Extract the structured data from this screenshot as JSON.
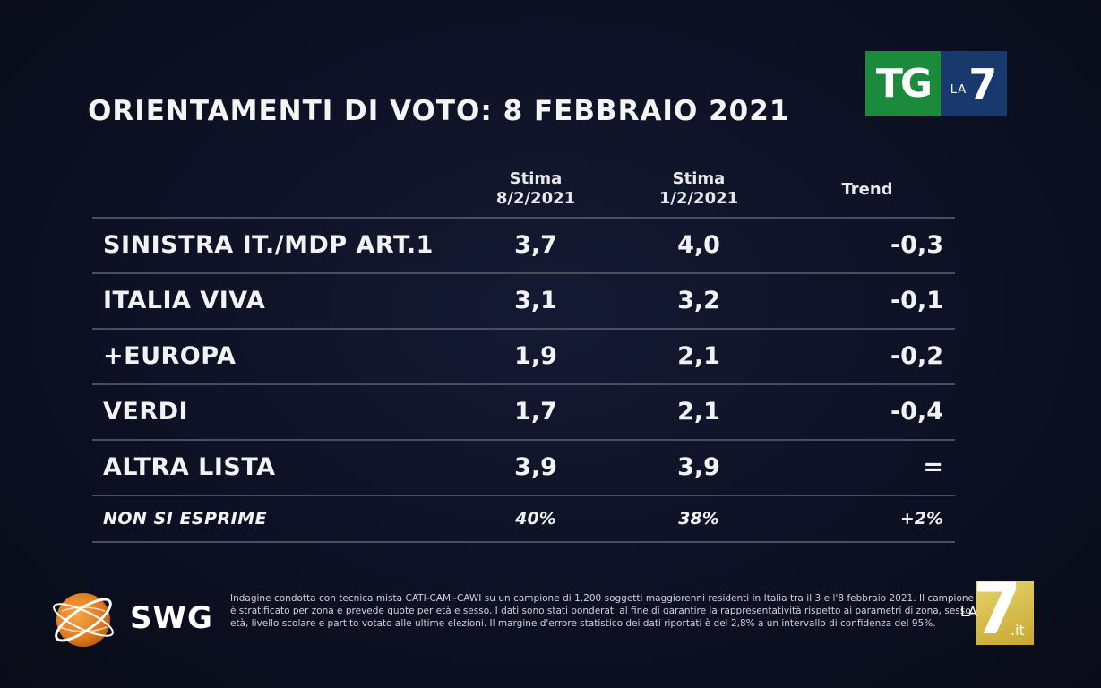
{
  "title": "ORIENTAMENTI DI VOTO: 8 FEBBRAIO 2021",
  "logo_top": {
    "tg": "TG",
    "la": "LA",
    "seven": "7"
  },
  "table": {
    "headers": {
      "col1_line1": "Stima",
      "col1_line2": "8/2/2021",
      "col2_line1": "Stima",
      "col2_line2": "1/2/2021",
      "col3": "Trend"
    },
    "rows": [
      {
        "label": "SINISTRA IT./MDP ART.1",
        "stima_8_2": "3,7",
        "stima_1_2": "4,0",
        "trend": "-0,3"
      },
      {
        "label": "ITALIA VIVA",
        "stima_8_2": "3,1",
        "stima_1_2": "3,2",
        "trend": "-0,1"
      },
      {
        "label": "+EUROPA",
        "stima_8_2": "1,9",
        "stima_1_2": "2,1",
        "trend": "-0,2"
      },
      {
        "label": "VERDI",
        "stima_8_2": "1,7",
        "stima_1_2": "2,1",
        "trend": "-0,4"
      },
      {
        "label": "ALTRA LISTA",
        "stima_8_2": "3,9",
        "stima_1_2": "3,9",
        "trend": "="
      },
      {
        "label": "NON SI ESPRIME",
        "stima_8_2": "40%",
        "stima_1_2": "38%",
        "trend": "+2%"
      }
    ]
  },
  "swg": {
    "name": "SWG"
  },
  "disclaimer": "Indagine condotta con tecnica mista CATI-CAMI-CAWI su un campione di 1.200 soggetti maggiorenni residenti in Italia tra il 3 e l'8 febbraio 2021. Il campione è stratificato per zona e prevede quote per età e sesso. I dati sono stati ponderati al fine di garantire la rappresentatività rispetto ai parametri di zona, sesso, età, livello scolare e partito votato alle ultime elezioni. Il margine d'errore statistico dei dati riportati è del 2,8% a un intervallo di confidenza del 95%.",
  "logo_bottom": {
    "la": "LA",
    "seven": "7",
    "it": ".it"
  },
  "colors": {
    "background": "#0d1124",
    "tg_green": "#1c8a3c",
    "la7_blue": "#18396e",
    "swg_orange": "#e8852a",
    "la7_gold": "#d6bc48"
  }
}
